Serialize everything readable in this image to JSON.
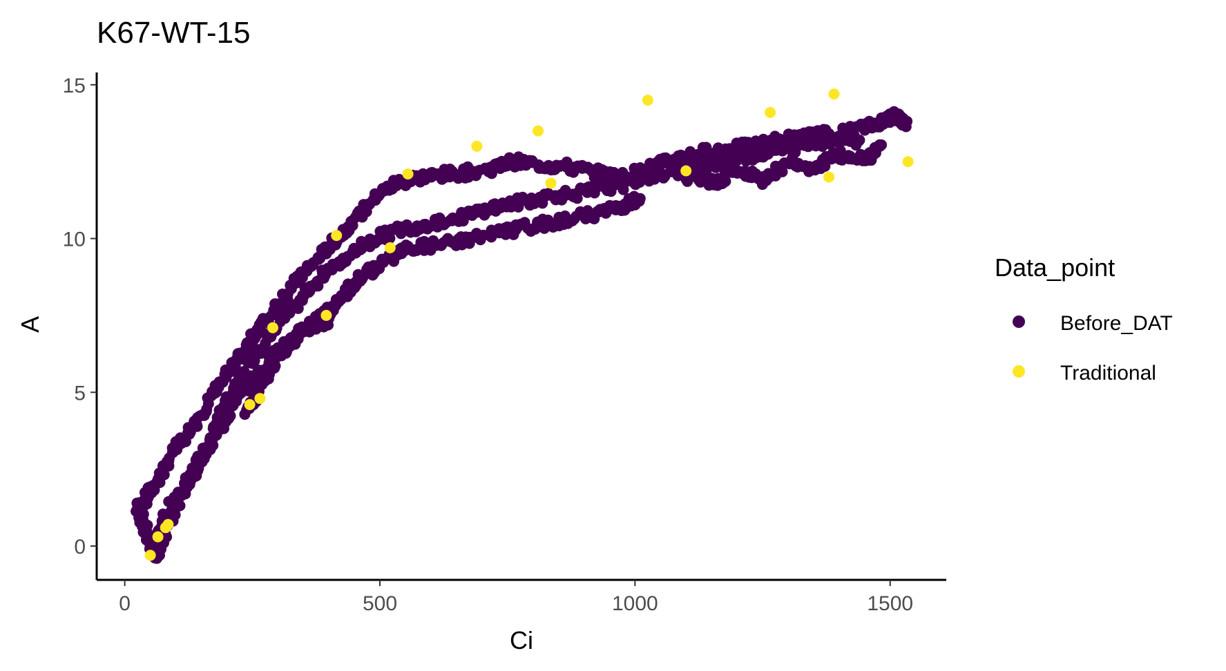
{
  "chart_data": {
    "type": "scatter",
    "title": "K67-WT-15",
    "xlabel": "Ci",
    "ylabel": "A",
    "xlim": [
      -55,
      1610
    ],
    "ylim": [
      -1.1,
      15.4
    ],
    "x_ticks": [
      0,
      500,
      1000,
      1500
    ],
    "y_ticks": [
      0,
      5,
      10,
      15
    ],
    "grid": false,
    "legend": {
      "title": "Data_point",
      "position": "right",
      "entries": [
        "Before_DAT",
        "Traditional"
      ]
    },
    "series": [
      {
        "name": "Before_DAT",
        "color": "#440154",
        "curves": [
          [
            [
              25,
              1.2
            ],
            [
              40,
              1.5
            ],
            [
              60,
              2.0
            ],
            [
              90,
              2.9
            ],
            [
              130,
              3.8
            ],
            [
              170,
              4.8
            ],
            [
              210,
              5.8
            ],
            [
              250,
              6.8
            ],
            [
              290,
              7.6
            ],
            [
              330,
              8.5
            ],
            [
              370,
              9.2
            ],
            [
              410,
              9.9
            ],
            [
              450,
              10.6
            ],
            [
              490,
              11.3
            ],
            [
              530,
              11.8
            ],
            [
              580,
              12.0
            ],
            [
              640,
              12.1
            ],
            [
              700,
              12.2
            ],
            [
              760,
              12.5
            ],
            [
              820,
              12.4
            ],
            [
              880,
              12.3
            ],
            [
              930,
              12.1
            ],
            [
              980,
              12.0
            ],
            [
              1030,
              12.3
            ],
            [
              1080,
              12.6
            ],
            [
              1130,
              12.8
            ],
            [
              1180,
              12.9
            ],
            [
              1230,
              13.0
            ],
            [
              1280,
              13.2
            ],
            [
              1330,
              13.3
            ],
            [
              1380,
              13.4
            ],
            [
              1430,
              13.5
            ],
            [
              1480,
              13.8
            ],
            [
              1510,
              14.0
            ],
            [
              1530,
              13.7
            ]
          ],
          [
            [
              60,
              -0.4
            ],
            [
              80,
              0.5
            ],
            [
              100,
              1.3
            ],
            [
              130,
              2.3
            ],
            [
              160,
              3.2
            ],
            [
              190,
              4.3
            ],
            [
              220,
              5.3
            ],
            [
              250,
              6.1
            ],
            [
              290,
              7.0
            ],
            [
              330,
              7.8
            ],
            [
              370,
              8.5
            ],
            [
              410,
              9.1
            ],
            [
              450,
              9.6
            ],
            [
              490,
              10.0
            ],
            [
              540,
              10.3
            ],
            [
              600,
              10.5
            ],
            [
              660,
              10.7
            ],
            [
              720,
              11.0
            ],
            [
              780,
              11.2
            ],
            [
              840,
              11.4
            ],
            [
              900,
              11.5
            ],
            [
              960,
              11.7
            ],
            [
              1020,
              12.0
            ],
            [
              1080,
              12.2
            ],
            [
              1140,
              12.4
            ],
            [
              1200,
              12.6
            ],
            [
              1260,
              12.8
            ],
            [
              1320,
              13.0
            ],
            [
              1380,
              13.2
            ],
            [
              1440,
              13.2
            ]
          ],
          [
            [
              30,
              1.0
            ],
            [
              45,
              0.4
            ],
            [
              55,
              -0.2
            ],
            [
              65,
              0.4
            ],
            [
              80,
              1.0
            ],
            [
              110,
              1.8
            ],
            [
              150,
              2.8
            ],
            [
              190,
              3.9
            ],
            [
              230,
              5.0
            ],
            [
              270,
              5.7
            ],
            [
              310,
              6.5
            ],
            [
              350,
              7.0
            ],
            [
              390,
              7.5
            ],
            [
              430,
              8.2
            ],
            [
              470,
              8.8
            ],
            [
              510,
              9.3
            ],
            [
              560,
              9.7
            ],
            [
              620,
              9.8
            ],
            [
              680,
              10.0
            ],
            [
              740,
              10.2
            ],
            [
              800,
              10.4
            ],
            [
              860,
              10.6
            ],
            [
              920,
              10.8
            ],
            [
              970,
              11.0
            ],
            [
              1010,
              11.3
            ]
          ],
          [
            [
              240,
              4.3
            ],
            [
              255,
              4.8
            ],
            [
              270,
              5.4
            ],
            [
              290,
              5.9
            ],
            [
              320,
              6.5
            ],
            [
              350,
              7.0
            ],
            [
              380,
              7.2
            ],
            [
              400,
              7.4
            ]
          ],
          [
            [
              1100,
              12.0
            ],
            [
              1150,
              11.8
            ],
            [
              1200,
              12.2
            ],
            [
              1250,
              11.9
            ],
            [
              1300,
              12.5
            ],
            [
              1350,
              12.3
            ],
            [
              1400,
              12.7
            ],
            [
              1450,
              12.6
            ],
            [
              1480,
              13.0
            ]
          ]
        ]
      },
      {
        "name": "Traditional",
        "color": "#fde725",
        "points": [
          [
            50,
            -0.3
          ],
          [
            65,
            0.3
          ],
          [
            80,
            0.6
          ],
          [
            85,
            0.7
          ],
          [
            245,
            4.6
          ],
          [
            265,
            4.8
          ],
          [
            290,
            7.1
          ],
          [
            395,
            7.5
          ],
          [
            415,
            10.1
          ],
          [
            520,
            9.7
          ],
          [
            555,
            12.1
          ],
          [
            690,
            13.0
          ],
          [
            810,
            13.5
          ],
          [
            835,
            11.8
          ],
          [
            1025,
            14.5
          ],
          [
            1100,
            12.2
          ],
          [
            1265,
            14.1
          ],
          [
            1380,
            12.0
          ],
          [
            1390,
            14.7
          ],
          [
            1535,
            12.5
          ]
        ]
      }
    ]
  }
}
